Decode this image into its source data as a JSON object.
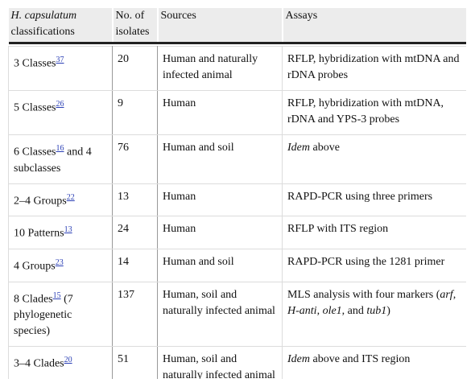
{
  "table": {
    "header": [
      [
        {
          "italic": "H. capsulatum"
        },
        {
          "text": " classifications"
        }
      ],
      [
        {
          "text": "No. of isolates"
        }
      ],
      [
        {
          "text": "Sources"
        }
      ],
      [
        {
          "text": "Assays"
        }
      ]
    ],
    "rows": [
      [
        [
          {
            "text": "3 Classes"
          },
          {
            "ref": "37"
          }
        ],
        [
          {
            "text": "20"
          }
        ],
        [
          {
            "text": "Human and naturally infected animal"
          }
        ],
        [
          {
            "text": "RFLP, hybridization with mtDNA and rDNA probes"
          }
        ]
      ],
      [
        [
          {
            "text": "5 Classes"
          },
          {
            "ref": "26"
          }
        ],
        [
          {
            "text": "9"
          }
        ],
        [
          {
            "text": "Human"
          }
        ],
        [
          {
            "text": "RFLP, hybridization with mtDNA, rDNA and YPS-3 probes"
          }
        ]
      ],
      [
        [
          {
            "text": "6 Classes"
          },
          {
            "ref": "16"
          },
          {
            "text": " and 4 subclasses"
          }
        ],
        [
          {
            "text": "76"
          }
        ],
        [
          {
            "text": "Human and soil"
          }
        ],
        [
          {
            "italic": "Idem"
          },
          {
            "text": " above"
          }
        ]
      ],
      [
        [
          {
            "text": "2–4 Groups"
          },
          {
            "ref": "22"
          }
        ],
        [
          {
            "text": "13"
          }
        ],
        [
          {
            "text": "Human"
          }
        ],
        [
          {
            "text": "RAPD-PCR using three primers"
          }
        ]
      ],
      [
        [
          {
            "text": "10 Patterns"
          },
          {
            "ref": "13"
          }
        ],
        [
          {
            "text": "24"
          }
        ],
        [
          {
            "text": "Human"
          }
        ],
        [
          {
            "text": "RFLP with ITS region"
          }
        ]
      ],
      [
        [
          {
            "text": "4 Groups"
          },
          {
            "ref": "23"
          }
        ],
        [
          {
            "text": "14"
          }
        ],
        [
          {
            "text": "Human and soil"
          }
        ],
        [
          {
            "text": "RAPD-PCR using the 1281 primer"
          }
        ]
      ],
      [
        [
          {
            "text": "8 Clades"
          },
          {
            "ref": "15"
          },
          {
            "text": " (7 phylogenetic species)"
          }
        ],
        [
          {
            "text": "137"
          }
        ],
        [
          {
            "text": "Human, soil and naturally infected animal"
          }
        ],
        [
          {
            "text": "MLS analysis with four markers ("
          },
          {
            "italic": "arf"
          },
          {
            "text": ", "
          },
          {
            "italic": "H-anti"
          },
          {
            "text": ", "
          },
          {
            "italic": "ole1"
          },
          {
            "text": ", and "
          },
          {
            "italic": "tub1"
          },
          {
            "text": ")"
          }
        ]
      ],
      [
        [
          {
            "text": "3–4 Clades"
          },
          {
            "ref": "20"
          }
        ],
        [
          {
            "text": "51"
          }
        ],
        [
          {
            "text": "Human, soil and naturally infected animal"
          }
        ],
        [
          {
            "italic": "Idem"
          },
          {
            "text": " above and ITS region"
          }
        ]
      ]
    ]
  }
}
